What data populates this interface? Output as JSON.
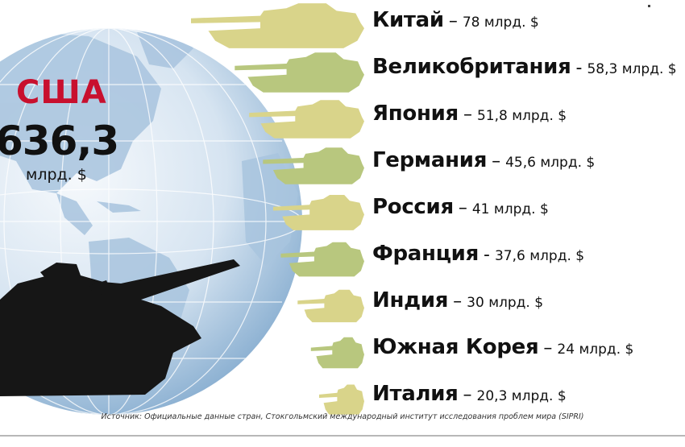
{
  "colors": {
    "tank_yellow": "#d9d48a",
    "tank_green": "#b8c77e",
    "usa_red": "#c8102e",
    "globe_light": "#eef4f9",
    "globe_mid": "#a9c6e0",
    "globe_dark": "#6f9ac2",
    "silhouette": "#161616"
  },
  "highlight": {
    "country": "США",
    "value": "636,3",
    "unit": "млрд. $"
  },
  "icons": [
    "tank-icon",
    "globe-icon"
  ],
  "chart_data": {
    "type": "bar",
    "unit": "млрд. $",
    "categories": [
      "Китай",
      "Великобритания",
      "Япония",
      "Германия",
      "Россия",
      "Франция",
      "Индия",
      "Южная Корея",
      "Италия"
    ],
    "values": [
      78,
      58.3,
      51.8,
      45.6,
      41,
      37.6,
      30,
      24,
      20.3
    ],
    "display_values": [
      "78",
      "58,3",
      "51,8",
      "45,6",
      "41",
      "37,6",
      "30",
      "24",
      "20,3"
    ],
    "separators": [
      "–",
      "-",
      "–",
      "–",
      "–",
      "-",
      "–",
      "–",
      "–"
    ],
    "tank_colors": [
      "yellow",
      "green",
      "yellow",
      "green",
      "yellow",
      "green",
      "yellow",
      "green",
      "yellow"
    ]
  },
  "source": "Источник: Официальные данные стран, Стокгольмский международный институт исследования проблем мира (SIPRI)"
}
